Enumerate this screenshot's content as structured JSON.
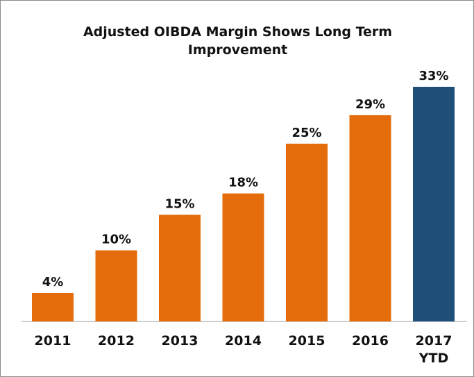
{
  "chart_data": {
    "type": "bar",
    "title": "Adjusted OIBDA Margin Shows Long Term Improvement",
    "categories": [
      "2011",
      "2012",
      "2013",
      "2014",
      "2015",
      "2016",
      "2017 YTD"
    ],
    "values": [
      4,
      10,
      15,
      18,
      25,
      29,
      33
    ],
    "value_labels": [
      "4%",
      "10%",
      "15%",
      "18%",
      "25%",
      "29%",
      "33%"
    ],
    "colors": [
      "#e46c0a",
      "#e46c0a",
      "#e46c0a",
      "#e46c0a",
      "#e46c0a",
      "#e46c0a",
      "#1f4e79"
    ]
  }
}
